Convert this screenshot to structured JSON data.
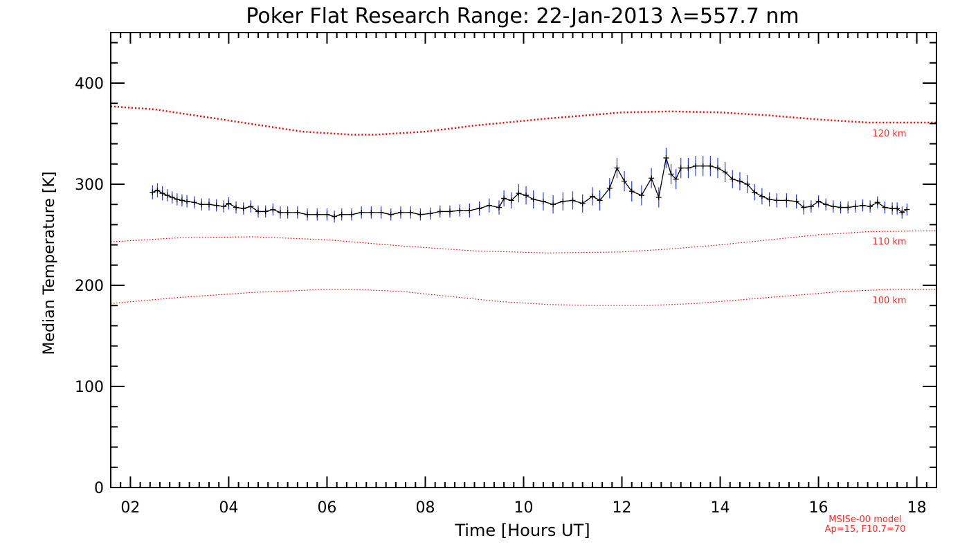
{
  "chart_data": {
    "type": "line",
    "title": "Poker Flat Research Range: 22-Jan-2013 λ=557.7 nm",
    "xlabel": "Time [Hours UT]",
    "ylabel": "Median Temperature [K]",
    "xlim": [
      1.6,
      18.4
    ],
    "ylim": [
      0,
      450
    ],
    "xticks": [
      2,
      4,
      6,
      8,
      10,
      12,
      14,
      16,
      18
    ],
    "xtick_labels": [
      "02",
      "04",
      "06",
      "08",
      "10",
      "12",
      "14",
      "16",
      "18"
    ],
    "yticks": [
      0,
      100,
      200,
      300,
      400
    ],
    "ytick_labels": [
      "0",
      "100",
      "200",
      "300",
      "400"
    ],
    "model_note": [
      "MSISe-00 model",
      "Ap=15, F10.7=70"
    ],
    "model_curves": [
      {
        "name": "120 km",
        "color": "#ff0000",
        "x": [
          1.6,
          2.5,
          4,
          5.5,
          6.5,
          7,
          8,
          9,
          10.5,
          12,
          13,
          14,
          15,
          16,
          17,
          18.4
        ],
        "y": [
          377,
          374,
          363,
          352,
          349,
          349,
          352,
          358,
          365,
          371,
          372,
          371,
          368,
          364,
          361,
          361
        ]
      },
      {
        "name": "110 km",
        "color": "#ff0000",
        "x": [
          1.6,
          3,
          4.5,
          6,
          7.5,
          9,
          10.5,
          12,
          13,
          14,
          15,
          16,
          17,
          18.4
        ],
        "y": [
          243,
          247,
          248,
          245,
          239,
          234,
          232,
          233,
          236,
          240,
          245,
          250,
          253,
          254
        ]
      },
      {
        "name": "100 km",
        "color": "#ff0000",
        "x": [
          1.6,
          3,
          4.5,
          6,
          6.5,
          7.5,
          8.5,
          9.5,
          10.5,
          11.5,
          12.5,
          13.5,
          14.5,
          15.5,
          16.5,
          17.5,
          18.4
        ],
        "y": [
          182,
          188,
          193,
          196,
          196,
          194,
          189,
          184,
          181,
          180,
          180,
          182,
          186,
          190,
          194,
          196,
          196
        ]
      }
    ],
    "series": [
      {
        "name": "Median Temperature",
        "color": "#000000",
        "error_color": "#1f3cff",
        "x": [
          2.45,
          2.55,
          2.65,
          2.75,
          2.85,
          2.95,
          3.05,
          3.15,
          3.3,
          3.45,
          3.6,
          3.75,
          3.9,
          4.0,
          4.15,
          4.3,
          4.45,
          4.6,
          4.75,
          4.9,
          5.05,
          5.2,
          5.4,
          5.6,
          5.8,
          6.0,
          6.15,
          6.3,
          6.5,
          6.7,
          6.9,
          7.1,
          7.3,
          7.5,
          7.7,
          7.9,
          8.1,
          8.3,
          8.5,
          8.7,
          8.9,
          9.1,
          9.3,
          9.5,
          9.6,
          9.75,
          9.9,
          10.05,
          10.2,
          10.4,
          10.6,
          10.8,
          11.0,
          11.2,
          11.4,
          11.55,
          11.75,
          11.9,
          12.05,
          12.2,
          12.4,
          12.6,
          12.75,
          12.9,
          13.0,
          13.1,
          13.2,
          13.35,
          13.5,
          13.65,
          13.8,
          13.95,
          14.1,
          14.25,
          14.4,
          14.55,
          14.7,
          14.85,
          15.0,
          15.15,
          15.35,
          15.55,
          15.7,
          15.85,
          16.0,
          16.15,
          16.3,
          16.45,
          16.6,
          16.75,
          16.9,
          17.05,
          17.2,
          17.35,
          17.5,
          17.6,
          17.7,
          17.8
        ],
        "y": [
          292,
          294,
          291,
          289,
          287,
          285,
          284,
          283,
          282,
          280,
          280,
          279,
          278,
          281,
          277,
          276,
          278,
          273,
          273,
          275,
          272,
          272,
          272,
          270,
          270,
          270,
          268,
          270,
          270,
          272,
          272,
          272,
          270,
          272,
          272,
          270,
          271,
          273,
          273,
          274,
          274,
          276,
          279,
          277,
          286,
          284,
          291,
          289,
          285,
          283,
          280,
          283,
          284,
          281,
          288,
          284,
          296,
          316,
          303,
          293,
          289,
          306,
          287,
          326,
          310,
          305,
          316,
          316,
          318,
          318,
          318,
          316,
          312,
          305,
          303,
          300,
          292,
          288,
          285,
          284,
          284,
          283,
          277,
          278,
          283,
          280,
          278,
          277,
          277,
          278,
          279,
          278,
          282,
          277,
          276,
          276,
          272,
          275
        ],
        "err": [
          7,
          7,
          7,
          6,
          6,
          6,
          6,
          6,
          6,
          6,
          6,
          6,
          6,
          6,
          6,
          6,
          6,
          6,
          6,
          6,
          6,
          6,
          6,
          6,
          6,
          6,
          6,
          6,
          6,
          6,
          6,
          6,
          6,
          6,
          6,
          6,
          6,
          6,
          6,
          6,
          7,
          7,
          7,
          7,
          8,
          8,
          9,
          9,
          9,
          9,
          9,
          9,
          9,
          9,
          9,
          10,
          10,
          10,
          10,
          10,
          10,
          10,
          10,
          10,
          10,
          10,
          10,
          10,
          10,
          10,
          10,
          10,
          10,
          9,
          9,
          9,
          8,
          8,
          7,
          7,
          7,
          7,
          7,
          6,
          6,
          6,
          6,
          6,
          6,
          6,
          6,
          6,
          6,
          6,
          6,
          6,
          6,
          6
        ]
      }
    ]
  }
}
